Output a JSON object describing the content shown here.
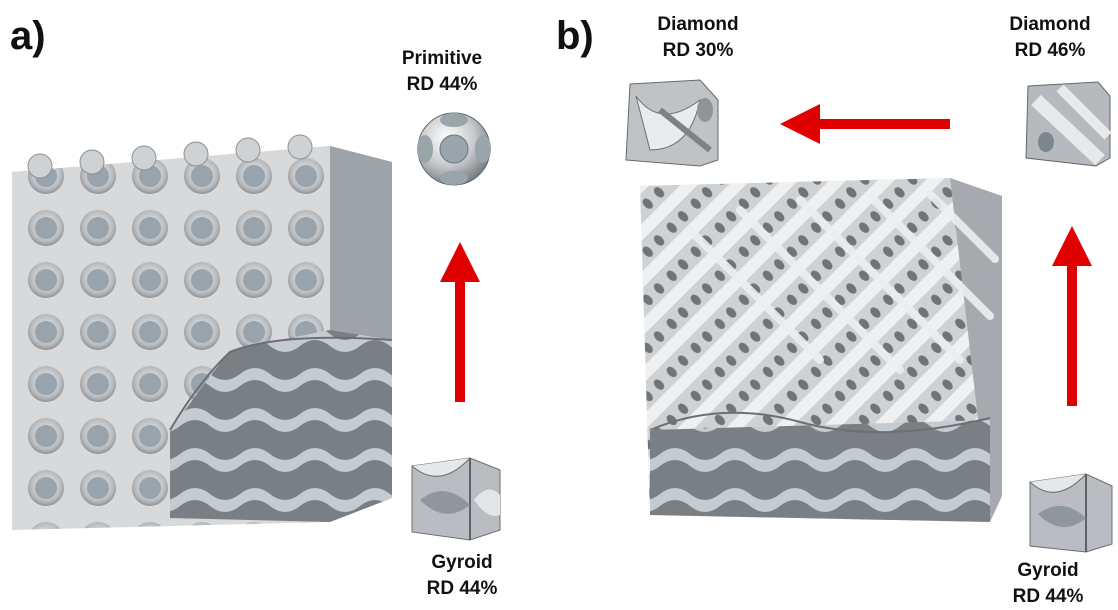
{
  "panel_a": {
    "letter": "a)",
    "top_label": {
      "name": "Primitive",
      "rd": "RD 44%"
    },
    "bottom_label": {
      "name": "Gyroid",
      "rd": "RD 44%"
    }
  },
  "panel_b": {
    "letter": "b)",
    "left_label": {
      "name": "Diamond",
      "rd": "RD 30%"
    },
    "right_label": {
      "name": "Diamond",
      "rd": "RD 46%"
    },
    "bottom_label": {
      "name": "Gyroid",
      "rd": "RD 44%"
    }
  },
  "colors": {
    "arrow": "#e00000",
    "lattice_face": "#c9ccce",
    "lattice_shadow": "#8a8d90",
    "cut_face": "#9aa4ab",
    "text": "#111111"
  }
}
